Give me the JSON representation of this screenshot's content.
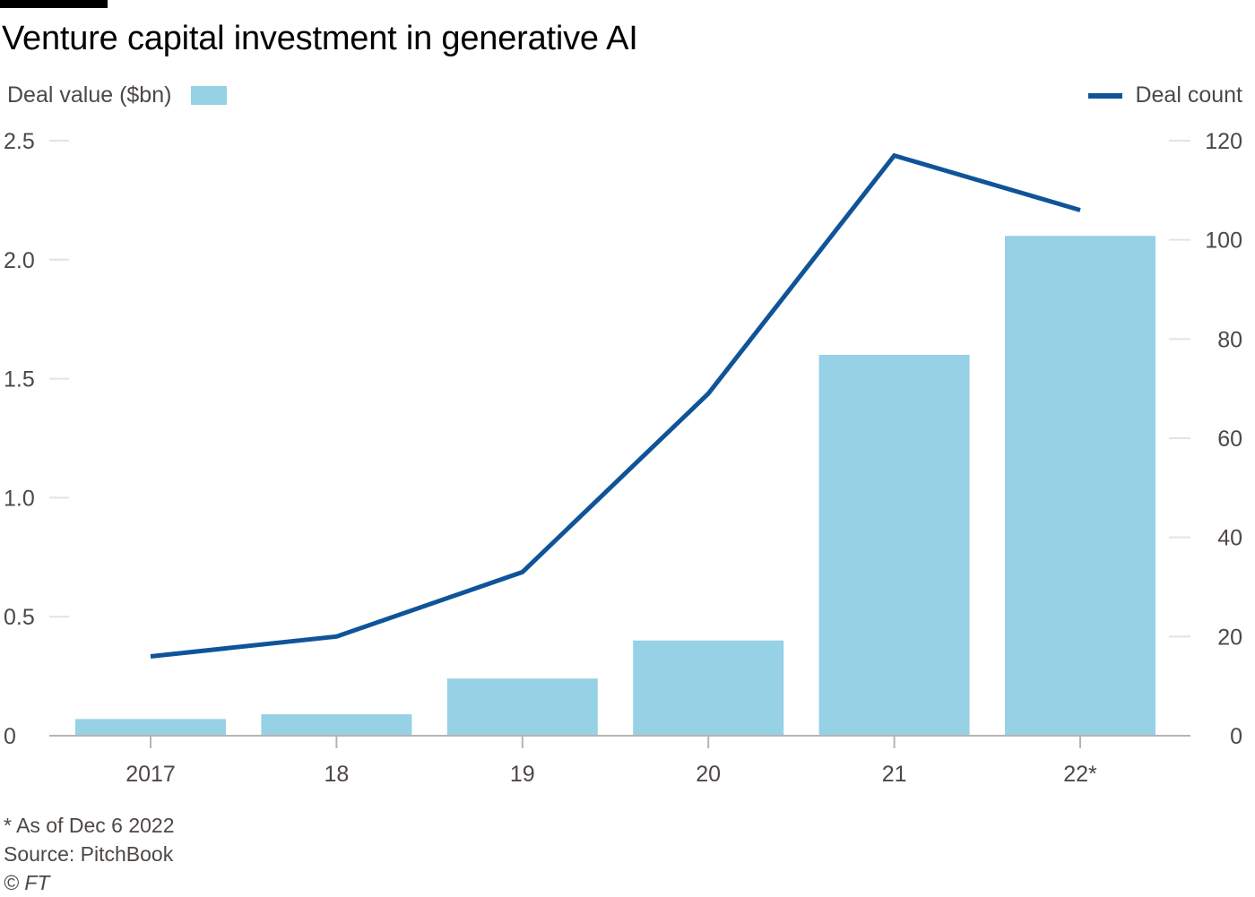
{
  "title": "Venture capital investment in generative AI",
  "legend": {
    "bars_label": "Deal value ($bn)",
    "line_label": "Deal count"
  },
  "colors": {
    "bar": "#96d1e6",
    "line": "#0f5499",
    "axis": "#b8b4b0",
    "grid": "#e6e2df",
    "text": "#4d4845"
  },
  "footer": {
    "note": "* As of Dec 6 2022",
    "source": "Source: PitchBook",
    "copyright": "© FT"
  },
  "chart_data": {
    "type": "bar",
    "categories": [
      "2017",
      "18",
      "19",
      "20",
      "21",
      "22*"
    ],
    "series": [
      {
        "name": "Deal value ($bn)",
        "type": "bar",
        "axis": "left",
        "values": [
          0.07,
          0.09,
          0.24,
          0.4,
          1.6,
          2.1
        ]
      },
      {
        "name": "Deal count",
        "type": "line",
        "axis": "right",
        "values": [
          16,
          20,
          33,
          69,
          117,
          106
        ]
      }
    ],
    "y_left": {
      "ylim": [
        0,
        2.5
      ],
      "ticks": [
        "0",
        "0.5",
        "1.0",
        "1.5",
        "2.0",
        "2.5"
      ],
      "tick_values": [
        0,
        0.5,
        1.0,
        1.5,
        2.0,
        2.5
      ]
    },
    "y_right": {
      "ylim": [
        0,
        120
      ],
      "ticks": [
        "0",
        "20",
        "40",
        "60",
        "80",
        "100",
        "120"
      ],
      "tick_values": [
        0,
        20,
        40,
        60,
        80,
        100,
        120
      ]
    },
    "grid": true,
    "legend_position": "top"
  }
}
